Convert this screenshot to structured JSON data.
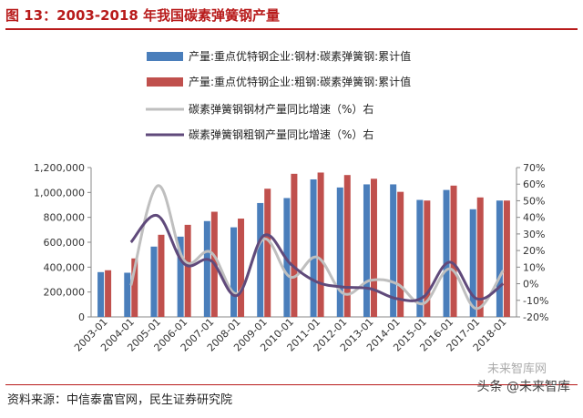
{
  "title": "图 13：2003-2018 年我国碳素弹簧钢产量",
  "source": "资料来源：中信泰富官网，民生证券研究院",
  "watermark": "头条 @未来智库",
  "watermark_faint": "未来智库网",
  "colors": {
    "title": "#b81b1b",
    "bar_steel": "#4a7ebb",
    "bar_crude": "#c0504d",
    "line_steel": "#bfbfbf",
    "line_crude": "#604a7b"
  },
  "chart_data": {
    "type": "bar",
    "categories": [
      "2003-01",
      "2004-01",
      "2005-01",
      "2006-01",
      "2007-01",
      "2008-01",
      "2009-01",
      "2010-01",
      "2011-01",
      "2012-01",
      "2013-01",
      "2014-01",
      "2015-01",
      "2016-01",
      "2017-01",
      "2018-01"
    ],
    "series": [
      {
        "name": "产量:重点优特钢企业:钢材:碳素弹簧钢:累计值",
        "type": "bar",
        "axis": "left",
        "values": [
          360000,
          355000,
          565000,
          645000,
          770000,
          720000,
          915000,
          955000,
          1105000,
          1040000,
          1065000,
          1065000,
          940000,
          1020000,
          865000,
          935000
        ]
      },
      {
        "name": "产量:重点优特钢企业:粗钢:碳素弹簧钢:累计值",
        "type": "bar",
        "axis": "left",
        "values": [
          375000,
          470000,
          660000,
          740000,
          845000,
          790000,
          1030000,
          1150000,
          1160000,
          1140000,
          1110000,
          1005000,
          935000,
          1055000,
          960000,
          935000
        ]
      },
      {
        "name": "碳素弹簧钢钢材产量同比增速（%）右",
        "type": "line",
        "axis": "right",
        "values": [
          null,
          -1,
          59,
          14,
          19,
          -6,
          27,
          4,
          16,
          -6,
          2,
          0,
          -12,
          9,
          -15,
          8
        ]
      },
      {
        "name": "碳素弹簧钢粗钢产量同比增速（%）右",
        "type": "line",
        "axis": "right",
        "values": [
          null,
          25,
          41,
          12,
          14,
          -7,
          29,
          12,
          1,
          -2,
          -3,
          -9,
          -8,
          13,
          -9,
          0
        ]
      }
    ],
    "left_axis": {
      "ticks": [
        "0",
        "200,000",
        "400,000",
        "600,000",
        "800,000",
        "1,000,000",
        "1,200,000"
      ],
      "ylim": [
        0,
        1200000
      ]
    },
    "right_axis": {
      "ticks": [
        "-20%",
        "-10%",
        "0%",
        "10%",
        "20%",
        "30%",
        "40%",
        "50%",
        "60%",
        "70%"
      ],
      "ylim": [
        -20,
        70
      ]
    },
    "legend_position": "top",
    "grid": false
  }
}
